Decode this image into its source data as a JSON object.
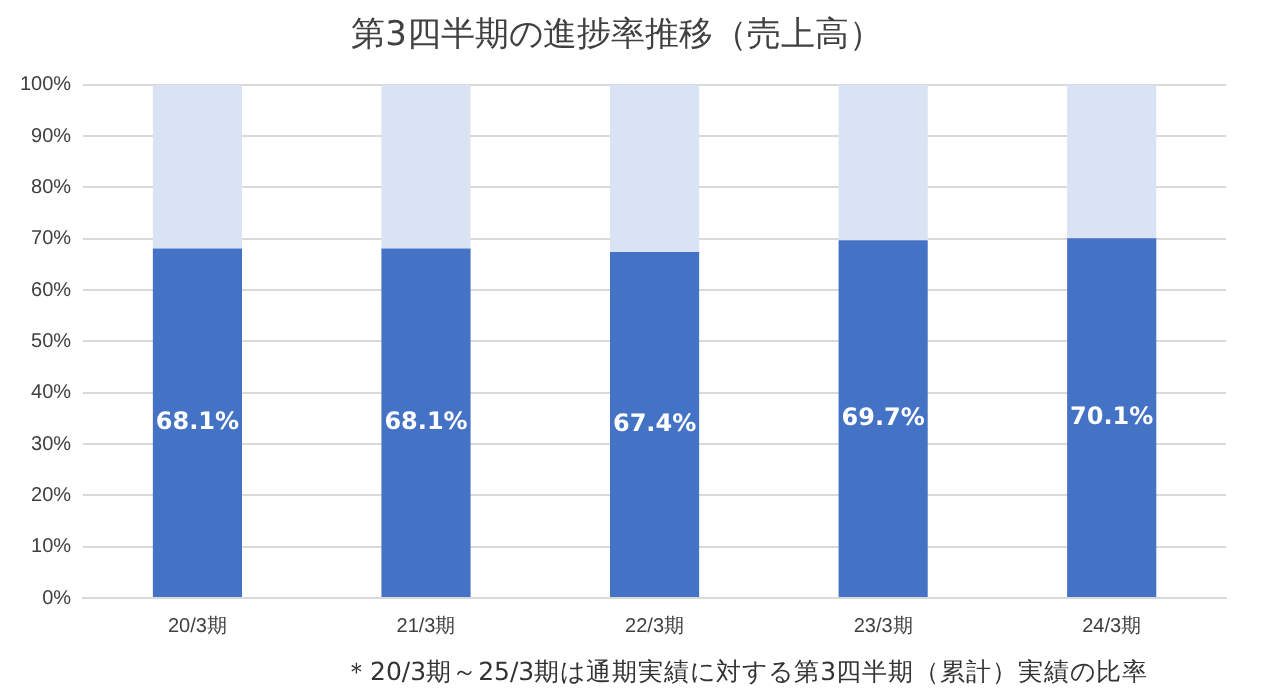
{
  "chart_data": {
    "type": "bar",
    "stacked": true,
    "title": "第3四半期の進捗率推移（売上高）",
    "categories": [
      "20/3期",
      "21/3期",
      "22/3期",
      "23/3期",
      "24/3期"
    ],
    "series": [
      {
        "color": "#4472c4",
        "values": [
          68.1,
          68.1,
          67.4,
          69.7,
          70.1
        ],
        "value_labels": [
          "68.1%",
          "68.1%",
          "67.4%",
          "69.7%",
          "70.1%"
        ]
      },
      {
        "color": "#dae3f3",
        "values": [
          31.9,
          31.9,
          32.6,
          30.3,
          29.9
        ]
      }
    ],
    "ylim": [
      0,
      100
    ],
    "yticks": [
      {
        "value": 0,
        "label": "0%"
      },
      {
        "value": 10,
        "label": "10%"
      },
      {
        "value": 20,
        "label": "20%"
      },
      {
        "value": 30,
        "label": "30%"
      },
      {
        "value": 40,
        "label": "40%"
      },
      {
        "value": 50,
        "label": "50%"
      },
      {
        "value": 60,
        "label": "60%"
      },
      {
        "value": 70,
        "label": "70%"
      },
      {
        "value": 80,
        "label": "80%"
      },
      {
        "value": 90,
        "label": "90%"
      },
      {
        "value": 100,
        "label": "100%"
      }
    ],
    "grid": "y",
    "legend": false,
    "annotations": [
      "＊20/3期～25/3期は通期実績に対する第3四半期（累計）実績の比率"
    ]
  }
}
